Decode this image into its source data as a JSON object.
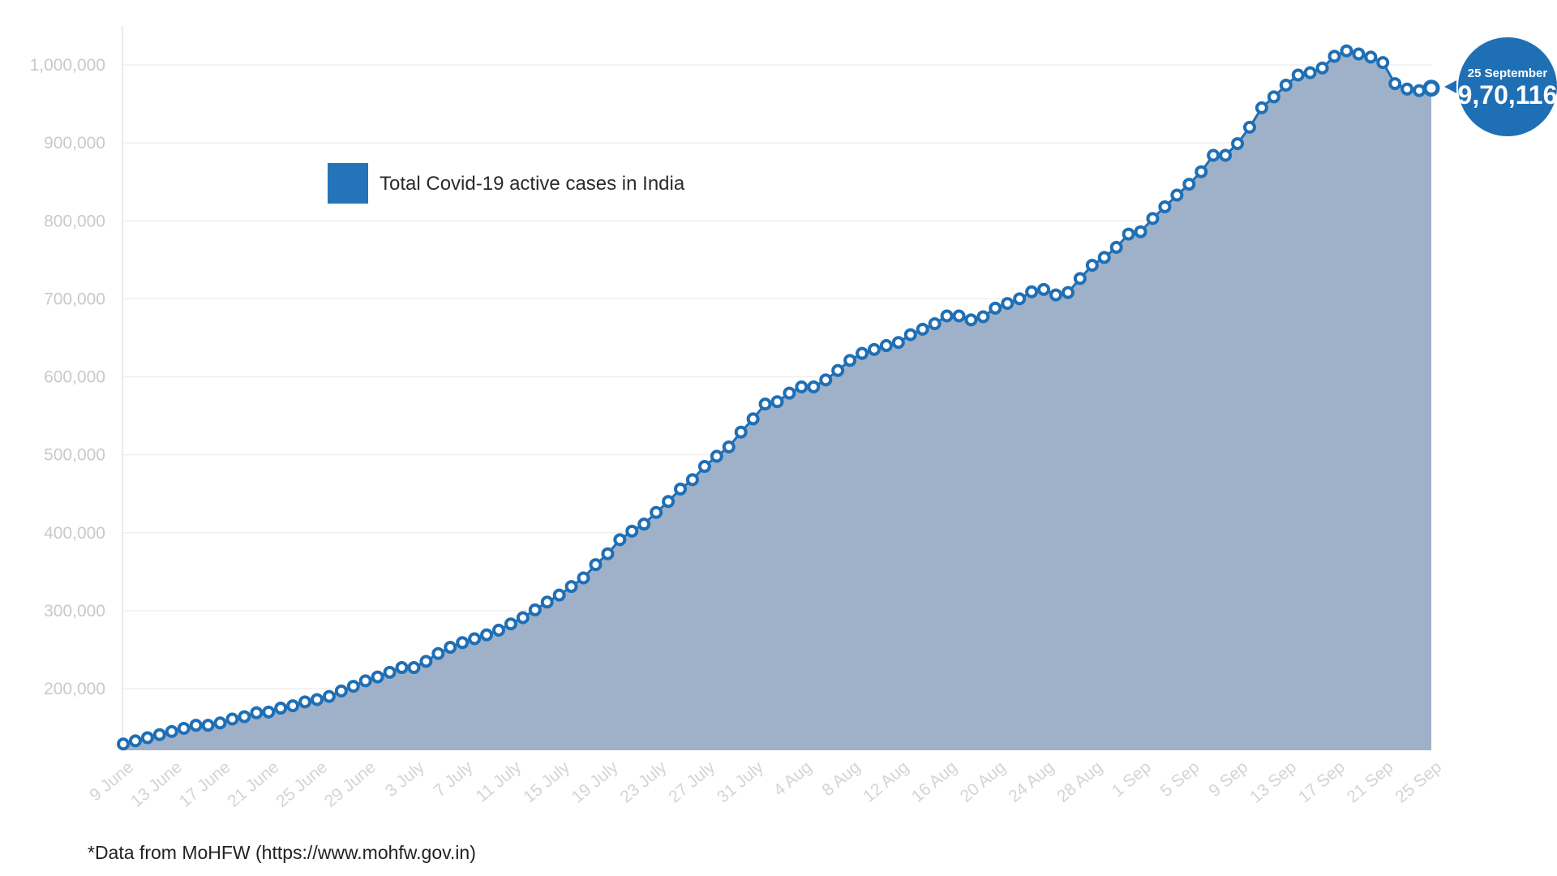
{
  "chart_data": {
    "type": "area",
    "legend": [
      "Total Covid-19 active cases in India"
    ],
    "ylim": [
      115000,
      1040000
    ],
    "yticks": [
      200000,
      300000,
      400000,
      500000,
      600000,
      700000,
      800000,
      900000,
      1000000
    ],
    "ytick_labels": [
      "200,000",
      "300,000",
      "400,000",
      "500,000",
      "600,000",
      "700,000",
      "800,000",
      "900,000",
      "1,000,000"
    ],
    "xtick_labels": [
      "9 June",
      "13 June",
      "17 June",
      "21 June",
      "25 June",
      "29 June",
      "3 July",
      "7 July",
      "11 July",
      "15 July",
      "19 July",
      "23 July",
      "27 July",
      "31 July",
      "4 Aug",
      "8 Aug",
      "12 Aug",
      "16 Aug",
      "20 Aug",
      "24 Aug",
      "28 Aug",
      "1 Sep",
      "5 Sep",
      "9 Sep",
      "13 Sep",
      "17 Sep",
      "21 Sep",
      "25 Sep"
    ],
    "x_start": "9 June",
    "x_end": "25 Sep",
    "series": [
      {
        "name": "Total Covid-19 active cases in India",
        "color": "#1f6fb5",
        "fill_color": "#9eb1c9",
        "values": [
          129000,
          133000,
          137000,
          141000,
          145000,
          149000,
          153000,
          153000,
          156000,
          161000,
          164000,
          169000,
          170000,
          175000,
          178000,
          183000,
          186000,
          190000,
          197000,
          203000,
          210000,
          215000,
          221000,
          227000,
          227000,
          235000,
          245000,
          253000,
          259000,
          264000,
          269000,
          275000,
          283000,
          291000,
          301000,
          311000,
          320000,
          331000,
          342000,
          359000,
          373000,
          391000,
          402000,
          411000,
          426000,
          440000,
          456000,
          468000,
          485000,
          498000,
          510000,
          529000,
          546000,
          565000,
          568000,
          579000,
          587000,
          587000,
          596000,
          608000,
          621000,
          630000,
          635000,
          640000,
          644000,
          654000,
          661000,
          668000,
          678000,
          678000,
          673000,
          677000,
          688000,
          694000,
          700000,
          709000,
          712000,
          705000,
          708000,
          726000,
          743000,
          753000,
          766000,
          783000,
          786000,
          803000,
          818000,
          833000,
          847000,
          863000,
          884000,
          884000,
          899000,
          920000,
          945000,
          959000,
          974000,
          987000,
          990000,
          996000,
          1011000,
          1018000,
          1014000,
          1010000,
          1003000,
          976000,
          969000,
          967000,
          970116
        ]
      }
    ],
    "callout": {
      "date": "25 September",
      "value": "9,70,116"
    }
  },
  "footnote": "*Data from MoHFW (https://www.mohfw.gov.in)"
}
